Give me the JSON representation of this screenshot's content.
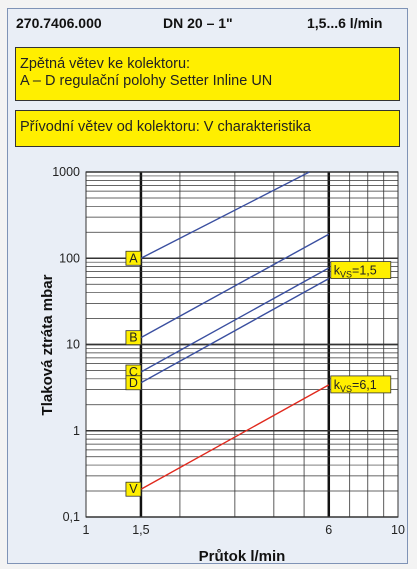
{
  "header": {
    "code": "270.7406.000",
    "dn": "DN 20 – 1\"",
    "flow_range": "1,5...6 l/min"
  },
  "info": {
    "line1": "Zpětná větev ke kolektoru:",
    "line2": "A – D regulační polohy Setter Inline UN",
    "line3": "Přívodní větev od kolektoru: V charakteristika"
  },
  "colors": {
    "blue": "#3a4fa0",
    "red": "#e0291d",
    "yellow": "#ffef00",
    "panel": "#e9eef6",
    "plot": "#ffffff"
  },
  "chart_data": {
    "type": "line",
    "xscale": "log",
    "yscale": "log",
    "xlim": [
      1,
      10
    ],
    "ylim": [
      0.1,
      1000
    ],
    "xlabel": "Průtok l/min",
    "ylabel": "Tlaková ztráta mbar",
    "xticks": [
      {
        "value": 1,
        "label": "1"
      },
      {
        "value": 1.5,
        "label": "1,5"
      },
      {
        "value": 6,
        "label": "6"
      },
      {
        "value": 10,
        "label": "10"
      }
    ],
    "yticks": [
      {
        "value": 0.1,
        "label": "0,1"
      },
      {
        "value": 1,
        "label": "1"
      },
      {
        "value": 10,
        "label": "10"
      },
      {
        "value": 100,
        "label": "100"
      },
      {
        "value": 1000,
        "label": "1000"
      }
    ],
    "grid": true,
    "series": [
      {
        "name": "A",
        "color": "#3a4fa0",
        "x": [
          1.5,
          5.2
        ],
        "y": [
          100,
          1000
        ]
      },
      {
        "name": "B",
        "color": "#3a4fa0",
        "x": [
          1.5,
          6
        ],
        "y": [
          12,
          190
        ]
      },
      {
        "name": "C",
        "color": "#3a4fa0",
        "x": [
          1.5,
          6
        ],
        "y": [
          4.8,
          77
        ]
      },
      {
        "name": "D",
        "color": "#3a4fa0",
        "x": [
          1.5,
          6
        ],
        "y": [
          3.6,
          58
        ]
      },
      {
        "name": "V",
        "color": "#e0291d",
        "x": [
          1.5,
          6
        ],
        "y": [
          0.21,
          3.4
        ]
      }
    ],
    "annotations": [
      {
        "label": "kvs=1,5",
        "kv": "k",
        "sub": "VS",
        "val": "=1,5",
        "x": 6,
        "y": 72
      },
      {
        "label": "kvs=6,1",
        "kv": "k",
        "sub": "VS",
        "val": "=6,1",
        "x": 6,
        "y": 3.4
      }
    ]
  }
}
